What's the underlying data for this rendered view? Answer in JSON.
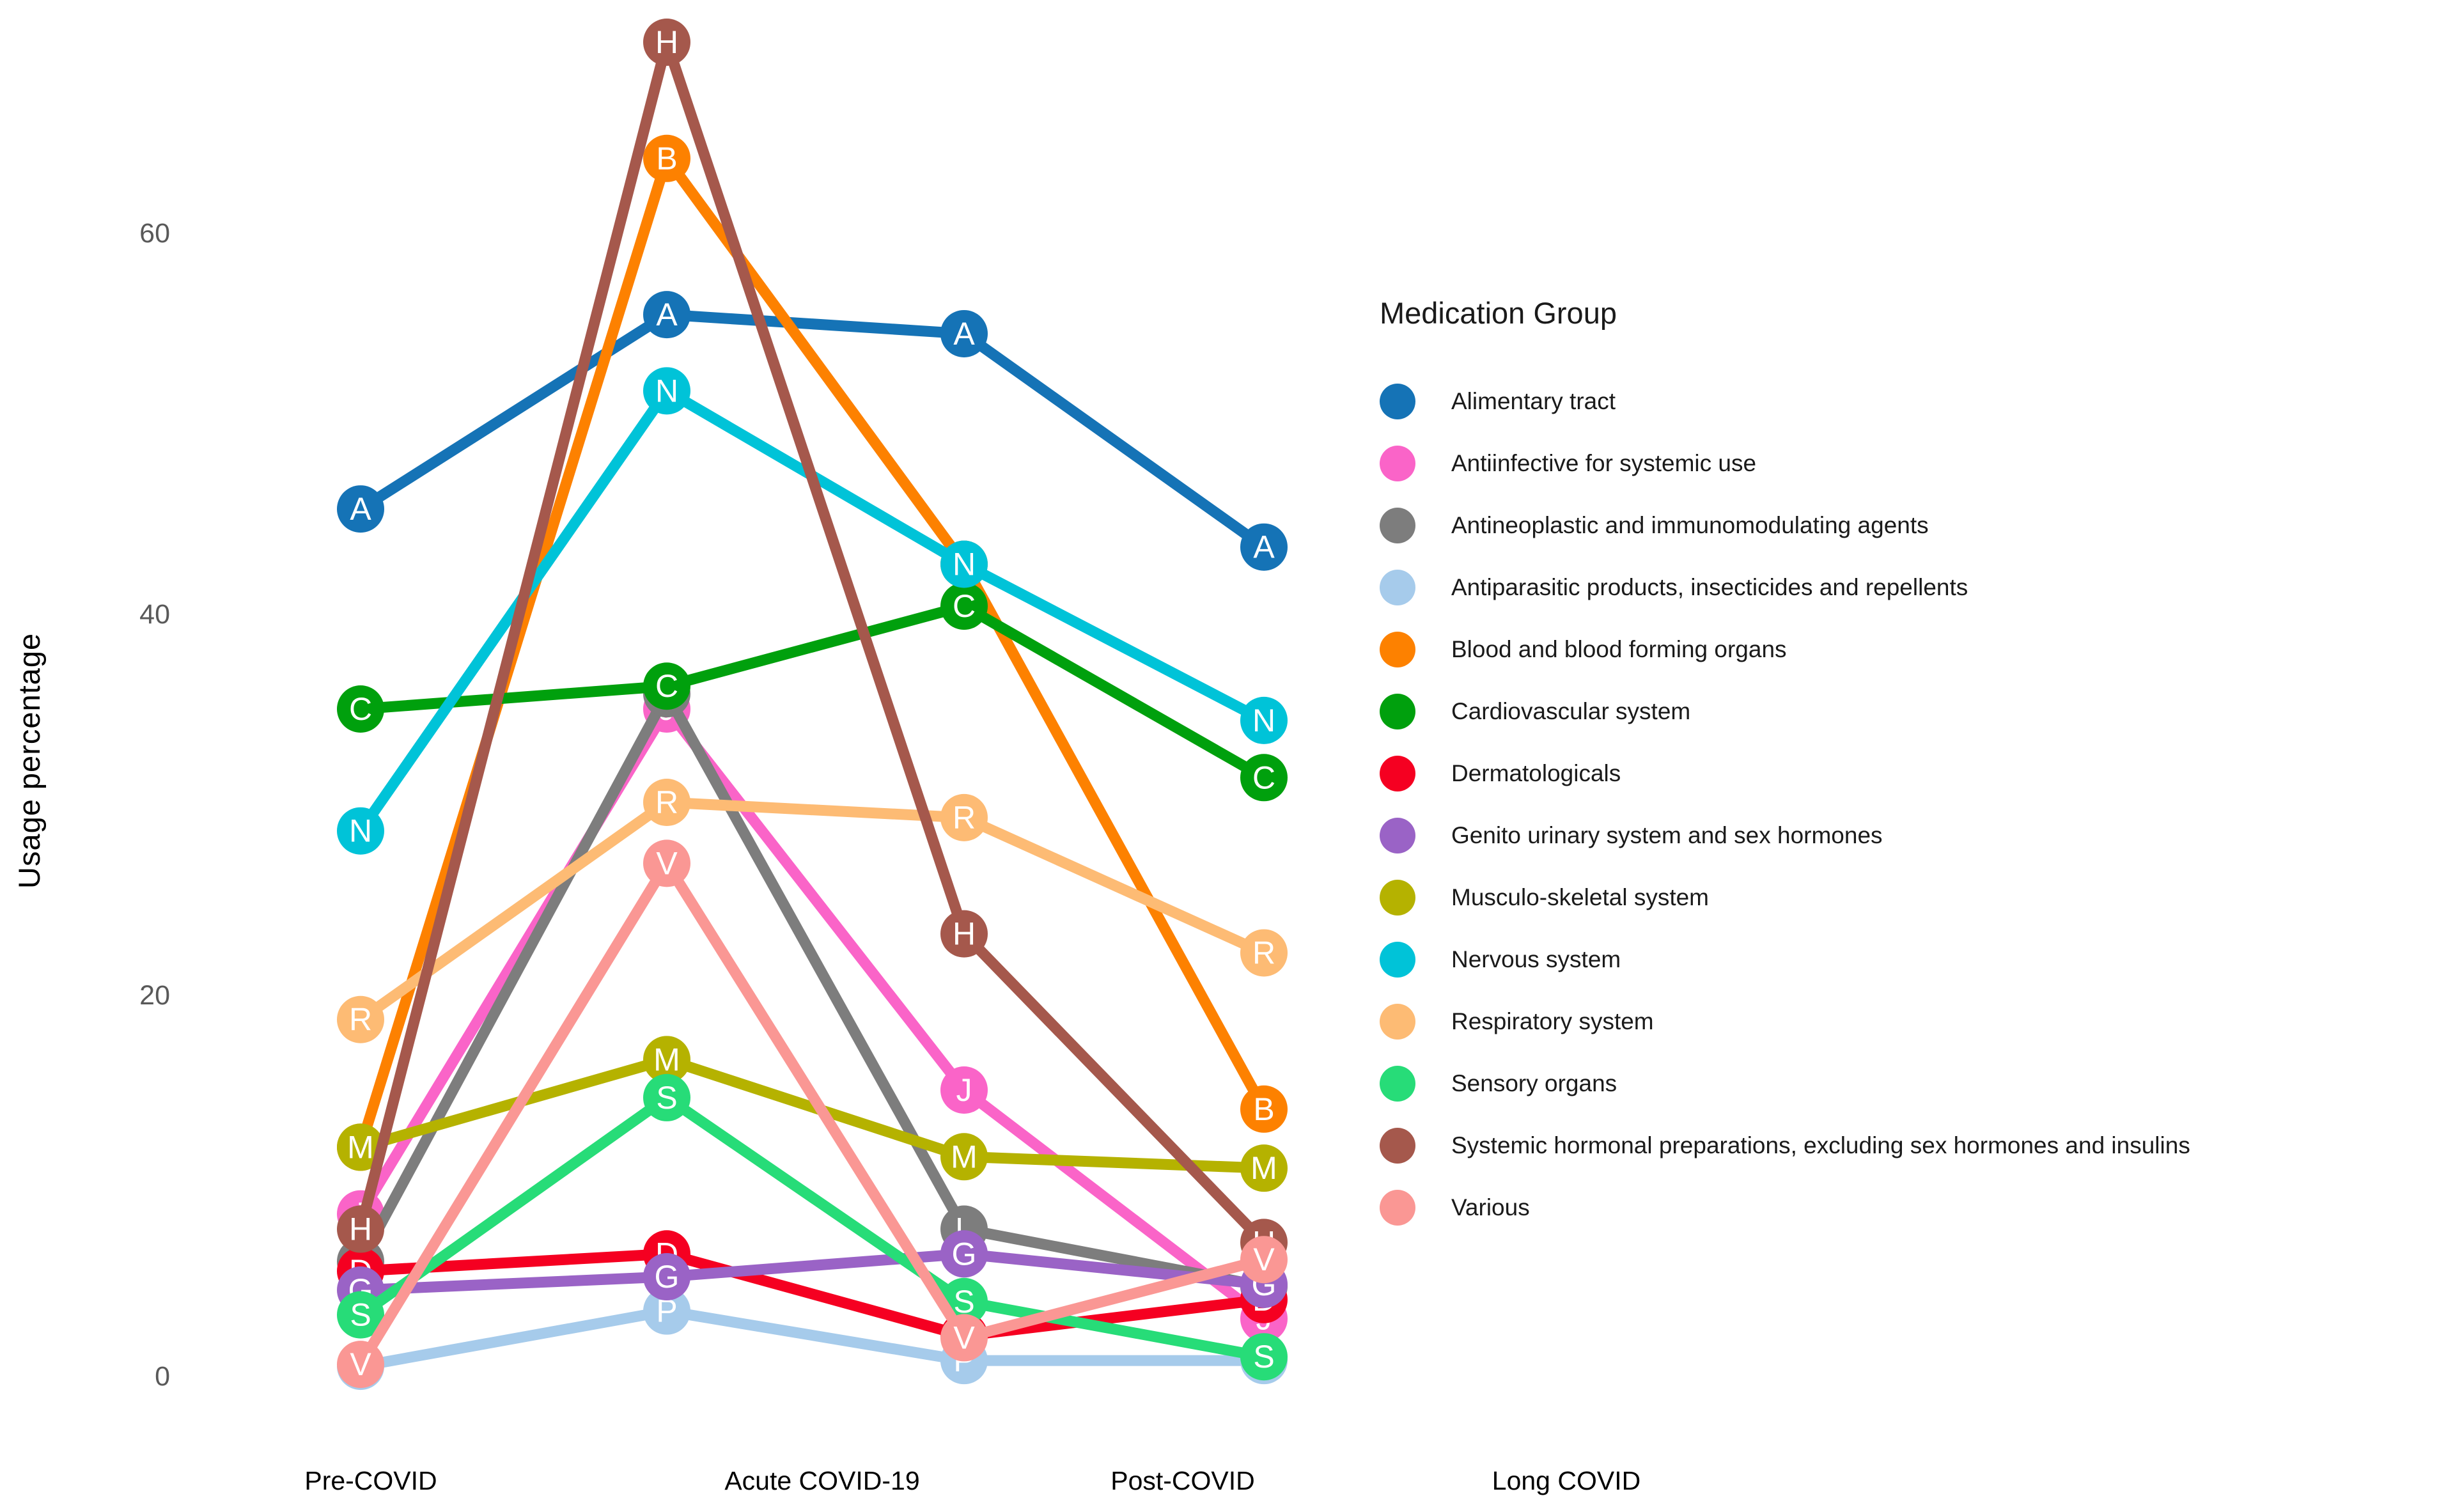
{
  "chart_data": {
    "type": "line",
    "title": "",
    "xlabel": "",
    "ylabel": "Usage percentage",
    "categories": [
      "Pre-COVID",
      "Acute COVID-19",
      "Post-COVID",
      "Long COVID"
    ],
    "y_ticks": [
      0,
      20,
      40,
      60
    ],
    "ylim": [
      0,
      72
    ],
    "grid": false,
    "legend_title": "Medication Group",
    "legend_position": "right",
    "marker_style": "circle-with-atc-letter",
    "series": [
      {
        "name": "Alimentary tract",
        "letter": "A",
        "color": "#1573b6",
        "values": [
          45.5,
          55.7,
          54.7,
          43.5
        ]
      },
      {
        "name": "Antiinfective for systemic use",
        "letter": "J",
        "color": "#fa64c8",
        "values": [
          8.5,
          35.0,
          15.0,
          3.0
        ]
      },
      {
        "name": "Antineoplastic and immunomodulating agents",
        "letter": "L",
        "color": "#7d7d7d",
        "values": [
          6.0,
          35.8,
          7.7,
          4.7
        ]
      },
      {
        "name": "Antiparasitic products, insecticides and repellents",
        "letter": "P",
        "color": "#a6cbeb",
        "values": [
          0.5,
          3.4,
          0.8,
          0.8
        ]
      },
      {
        "name": "Blood and blood forming organs",
        "letter": "B",
        "color": "#fd8100",
        "values": [
          12.0,
          63.9,
          42.6,
          14.0
        ]
      },
      {
        "name": "Cardiovascular system",
        "letter": "C",
        "color": "#00a00d",
        "values": [
          35.0,
          36.2,
          40.4,
          31.4
        ]
      },
      {
        "name": "Dermatologicals",
        "letter": "D",
        "color": "#f50021",
        "values": [
          5.5,
          6.4,
          2.1,
          4.0
        ]
      },
      {
        "name": "Genito urinary system and sex hormones",
        "letter": "G",
        "color": "#9a63c6",
        "values": [
          4.5,
          5.2,
          6.4,
          4.8
        ]
      },
      {
        "name": "Musculo-skeletal system",
        "letter": "M",
        "color": "#b5b200",
        "values": [
          12.0,
          16.6,
          11.5,
          10.9
        ]
      },
      {
        "name": "Nervous system",
        "letter": "N",
        "color": "#00c3d8",
        "values": [
          28.6,
          51.7,
          42.6,
          34.4
        ]
      },
      {
        "name": "Respiratory system",
        "letter": "R",
        "color": "#fdbb74",
        "values": [
          18.7,
          30.1,
          29.3,
          22.2
        ]
      },
      {
        "name": "Sensory organs",
        "letter": "S",
        "color": "#27dc78",
        "values": [
          3.2,
          14.6,
          3.9,
          1.0
        ]
      },
      {
        "name": "Systemic hormonal preparations, excluding sex hormones and insulins",
        "letter": "H",
        "color": "#a5584c",
        "values": [
          7.7,
          70.0,
          23.2,
          7.0
        ]
      },
      {
        "name": "Various",
        "letter": "V",
        "color": "#fa9794",
        "values": [
          0.6,
          26.9,
          2.0,
          6.1
        ]
      }
    ]
  }
}
